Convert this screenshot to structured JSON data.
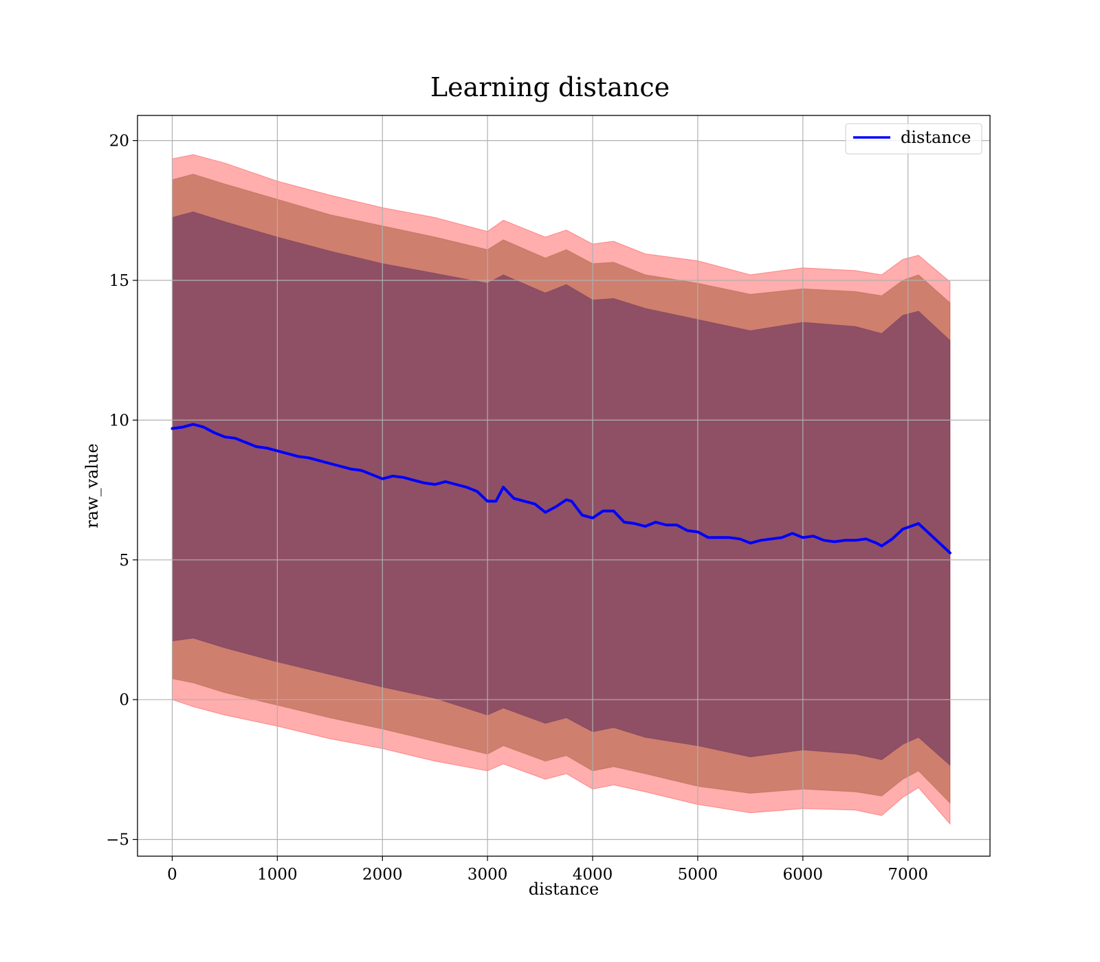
{
  "chart_data": {
    "type": "line",
    "title": "Learning distance",
    "xlabel": "distance",
    "ylabel": "raw_value",
    "xlim": [
      -330,
      7780
    ],
    "ylim": [
      -5.6,
      20.9
    ],
    "xticks": [
      0,
      1000,
      2000,
      3000,
      4000,
      5000,
      6000,
      7000
    ],
    "yticks": [
      -5,
      0,
      5,
      10,
      15,
      20
    ],
    "ytick_labels": [
      "−5",
      "0",
      "5",
      "10",
      "15",
      "20"
    ],
    "grid": true,
    "legend": {
      "placement": "top-right",
      "entries": [
        "distance"
      ]
    },
    "colors": {
      "mean_line": "#0000ff",
      "band_outer": "#ff0000",
      "band_middle": "#a0522d",
      "band_inner": "#5b2a5e"
    },
    "series": [
      {
        "name": "distance",
        "style": "line",
        "x": [
          0,
          100,
          200,
          300,
          400,
          500,
          600,
          700,
          800,
          900,
          1000,
          1100,
          1200,
          1300,
          1400,
          1500,
          1600,
          1700,
          1800,
          1900,
          2000,
          2100,
          2200,
          2300,
          2400,
          2500,
          2600,
          2700,
          2800,
          2900,
          3000,
          3080,
          3150,
          3250,
          3350,
          3450,
          3550,
          3650,
          3750,
          3800,
          3900,
          4000,
          4100,
          4200,
          4300,
          4400,
          4500,
          4600,
          4700,
          4800,
          4900,
          5000,
          5100,
          5200,
          5300,
          5400,
          5500,
          5600,
          5700,
          5800,
          5900,
          6000,
          6100,
          6200,
          6300,
          6400,
          6500,
          6600,
          6700,
          6750,
          6850,
          6950,
          7100,
          7400
        ],
        "y": [
          9.7,
          9.75,
          9.85,
          9.75,
          9.55,
          9.4,
          9.35,
          9.2,
          9.05,
          9.0,
          8.9,
          8.8,
          8.7,
          8.65,
          8.55,
          8.45,
          8.35,
          8.25,
          8.2,
          8.05,
          7.9,
          8.0,
          7.95,
          7.85,
          7.75,
          7.7,
          7.8,
          7.7,
          7.6,
          7.45,
          7.1,
          7.1,
          7.6,
          7.2,
          7.1,
          7.0,
          6.7,
          6.9,
          7.15,
          7.1,
          6.6,
          6.5,
          6.75,
          6.75,
          6.35,
          6.3,
          6.2,
          6.35,
          6.25,
          6.25,
          6.05,
          6.0,
          5.8,
          5.8,
          5.8,
          5.75,
          5.6,
          5.7,
          5.75,
          5.8,
          5.95,
          5.8,
          5.85,
          5.7,
          5.65,
          5.7,
          5.7,
          5.75,
          5.6,
          5.5,
          5.75,
          6.1,
          6.3,
          5.25
        ]
      },
      {
        "name": "",
        "style": "band",
        "x": [
          0,
          200,
          500,
          1000,
          1500,
          2000,
          2500,
          3000,
          3150,
          3550,
          3750,
          4000,
          4200,
          4500,
          5000,
          5500,
          6000,
          6500,
          6750,
          6950,
          7100,
          7400
        ],
        "lower": [
          0.0,
          -0.25,
          -0.55,
          -0.95,
          -1.4,
          -1.75,
          -2.2,
          -2.55,
          -2.3,
          -2.85,
          -2.65,
          -3.2,
          -3.05,
          -3.3,
          -3.75,
          -4.05,
          -3.9,
          -3.95,
          -4.15,
          -3.5,
          -3.15,
          -4.45
        ],
        "upper": [
          19.35,
          19.5,
          19.2,
          18.55,
          18.05,
          17.6,
          17.25,
          16.75,
          17.15,
          16.55,
          16.8,
          16.3,
          16.4,
          15.95,
          15.7,
          15.2,
          15.45,
          15.35,
          15.2,
          15.75,
          15.9,
          14.95
        ]
      },
      {
        "name": "",
        "style": "band",
        "x": [
          0,
          200,
          500,
          1000,
          1500,
          2000,
          2500,
          3000,
          3150,
          3550,
          3750,
          4000,
          4200,
          4500,
          5000,
          5500,
          6000,
          6500,
          6750,
          6950,
          7100,
          7400
        ],
        "lower": [
          0.75,
          0.6,
          0.25,
          -0.2,
          -0.65,
          -1.05,
          -1.5,
          -1.95,
          -1.65,
          -2.2,
          -2.0,
          -2.55,
          -2.4,
          -2.65,
          -3.1,
          -3.35,
          -3.2,
          -3.3,
          -3.45,
          -2.85,
          -2.55,
          -3.7
        ],
        "upper": [
          18.6,
          18.8,
          18.45,
          17.9,
          17.35,
          16.95,
          16.55,
          16.1,
          16.45,
          15.8,
          16.1,
          15.6,
          15.65,
          15.2,
          14.9,
          14.5,
          14.7,
          14.6,
          14.45,
          15.0,
          15.2,
          14.2
        ]
      },
      {
        "name": "",
        "style": "band",
        "x": [
          0,
          200,
          500,
          1000,
          1500,
          2000,
          2500,
          3000,
          3150,
          3550,
          3750,
          4000,
          4200,
          4500,
          5000,
          5500,
          6000,
          6500,
          6750,
          6950,
          7100,
          7400
        ],
        "lower": [
          2.1,
          2.2,
          1.85,
          1.35,
          0.9,
          0.45,
          0.05,
          -0.55,
          -0.3,
          -0.85,
          -0.65,
          -1.15,
          -1.0,
          -1.35,
          -1.65,
          -2.05,
          -1.8,
          -1.95,
          -2.15,
          -1.6,
          -1.35,
          -2.35
        ],
        "upper": [
          17.25,
          17.45,
          17.1,
          16.55,
          16.05,
          15.6,
          15.25,
          14.9,
          15.2,
          14.55,
          14.85,
          14.3,
          14.35,
          14.0,
          13.6,
          13.2,
          13.5,
          13.35,
          13.1,
          13.75,
          13.9,
          12.85
        ]
      }
    ]
  }
}
